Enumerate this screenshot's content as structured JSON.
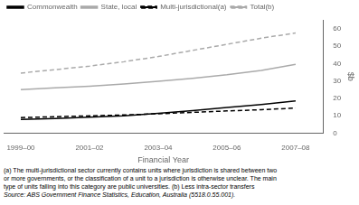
{
  "chart_data": {
    "type": "line",
    "x": [
      1999,
      2000,
      2001,
      2002,
      2003,
      2004,
      2005,
      2006,
      2007
    ],
    "series": [
      {
        "name": "Commonwealth",
        "color": "#000000",
        "line_style": "solid",
        "values": [
          8.0,
          8.5,
          9.2,
          10.0,
          11.5,
          13.0,
          14.8,
          16.5,
          18.5
        ]
      },
      {
        "name": "State, local",
        "color": "#aaaaaa",
        "line_style": "solid",
        "values": [
          25.0,
          26.0,
          27.0,
          28.2,
          29.8,
          31.5,
          33.5,
          36.0,
          39.5
        ]
      },
      {
        "name": "Multi-jurisdictional(a)",
        "color": "#000000",
        "line_style": "dashed",
        "values": [
          9.0,
          9.5,
          10.0,
          10.5,
          11.2,
          12.0,
          12.8,
          13.5,
          14.5
        ]
      },
      {
        "name": "Total(b)",
        "color": "#aaaaaa",
        "line_style": "dashed",
        "values": [
          34.5,
          36.5,
          38.5,
          41.0,
          44.0,
          47.5,
          51.0,
          54.5,
          57.5
        ]
      }
    ],
    "xlabel": "Financial Year",
    "ylabel": "$b",
    "xlim": [
      1998.5,
      2007.8
    ],
    "xticks": [
      {
        "value": 1999,
        "label": "1999–00"
      },
      {
        "value": 2001,
        "label": "2001–02"
      },
      {
        "value": 2003,
        "label": "2003–04"
      },
      {
        "value": 2005,
        "label": "2005–06"
      },
      {
        "value": 2007,
        "label": "2007–08"
      }
    ],
    "ylim": [
      0,
      65
    ],
    "yticks": [
      0,
      10,
      20,
      30,
      40,
      50,
      60
    ],
    "grid": false,
    "legend": "top",
    "annotations": [
      "(a) The multi-jurisdictional sector currently contains units where jurisdiction is shared between two",
      "or more governments, or the classification of a unit to a jurisdiction is otherwise unclear. The main",
      "type of units falling into this category are public universities.  (b) Less intra-sector transfers",
      "Source: ABS Government Finance Statistics, Education, Australia (5518.0.55.001)."
    ]
  }
}
